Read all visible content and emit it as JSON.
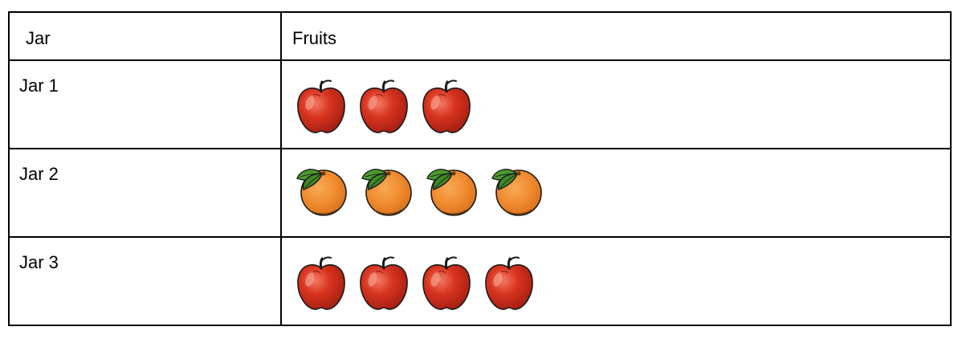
{
  "table": {
    "headers": {
      "jar": "Jar",
      "fruits": "Fruits"
    },
    "rows": [
      {
        "label": "Jar 1",
        "fruit": "apple",
        "count": 3
      },
      {
        "label": "Jar 2",
        "fruit": "orange",
        "count": 4
      },
      {
        "label": "Jar 3",
        "fruit": "apple",
        "count": 4
      }
    ]
  },
  "icons": {
    "apple": "apple-icon",
    "orange": "orange-icon"
  },
  "colors": {
    "apple_red": "#d8331f",
    "orange": "#f08a2e",
    "leaf_green": "#4a9a2e",
    "border": "#000000"
  }
}
